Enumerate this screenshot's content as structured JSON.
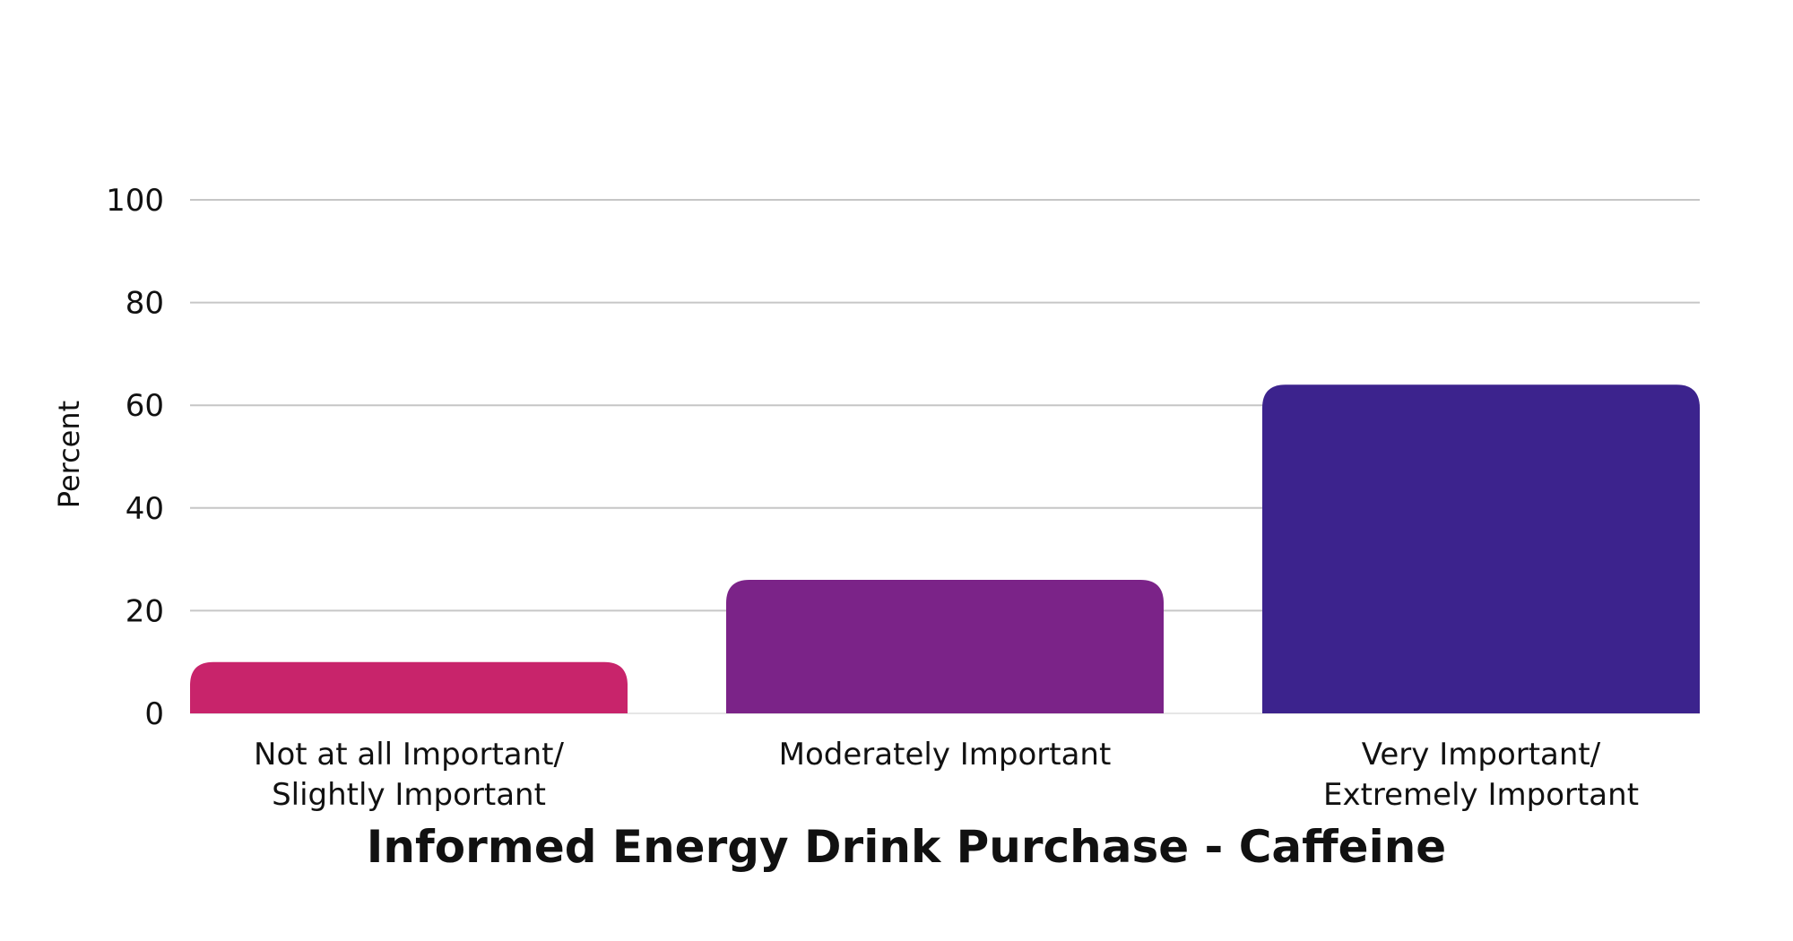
{
  "chart_data": {
    "type": "bar",
    "categories": [
      [
        "Not at all Important/",
        "Slightly Important"
      ],
      [
        "Moderately Important"
      ],
      [
        "Very Important/",
        "Extremely Important"
      ]
    ],
    "values": [
      10,
      26,
      64
    ],
    "colors": [
      "#c8246b",
      "#7b2388",
      "#3c238d"
    ],
    "xlabel": "Informed Energy Drink Purchase - Caffeine",
    "ylabel": "Percent",
    "ylim": [
      0,
      100
    ],
    "yticks": [
      "0",
      "20",
      "40",
      "60",
      "80",
      "100"
    ],
    "grid": true
  }
}
